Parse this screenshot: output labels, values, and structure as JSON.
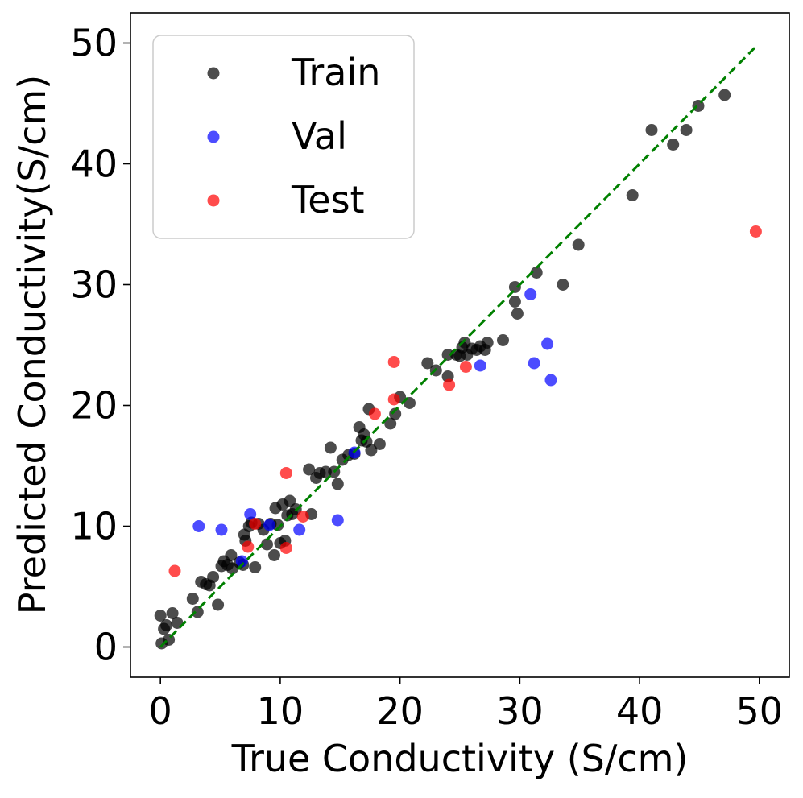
{
  "chart_data": {
    "type": "scatter",
    "title": "",
    "xlabel": "True Conductivity (S/cm)",
    "ylabel": "Predicted Conductivity(S/cm)",
    "xlim": [
      -2.5,
      52.5
    ],
    "ylim": [
      -2.5,
      52.5
    ],
    "xticks": [
      0,
      10,
      20,
      30,
      40,
      50
    ],
    "yticks": [
      0,
      10,
      20,
      30,
      40,
      50
    ],
    "xtick_labels": [
      "0",
      "10",
      "20",
      "30",
      "40",
      "50"
    ],
    "ytick_labels": [
      "0",
      "10",
      "20",
      "30",
      "40",
      "50"
    ],
    "grid": false,
    "legend_position": "top-left",
    "reference_line": {
      "x": [
        0,
        49.8
      ],
      "y": [
        0,
        49.8
      ],
      "color": "#008000",
      "style": "dashed"
    },
    "series": [
      {
        "name": "Train",
        "color": "#000000",
        "points": [
          [
            0.1,
            0.3
          ],
          [
            0.0,
            2.6
          ],
          [
            0.3,
            1.5
          ],
          [
            0.5,
            1.8
          ],
          [
            0.7,
            0.6
          ],
          [
            1.0,
            2.8
          ],
          [
            1.4,
            2.0
          ],
          [
            2.7,
            4.0
          ],
          [
            3.1,
            2.9
          ],
          [
            3.4,
            5.4
          ],
          [
            3.8,
            5.2
          ],
          [
            4.1,
            5.1
          ],
          [
            4.4,
            5.8
          ],
          [
            4.8,
            3.5
          ],
          [
            5.1,
            6.7
          ],
          [
            5.3,
            7.1
          ],
          [
            5.6,
            6.8
          ],
          [
            5.9,
            7.6
          ],
          [
            6.0,
            6.5
          ],
          [
            6.6,
            7.0
          ],
          [
            6.9,
            6.8
          ],
          [
            7.0,
            9.3
          ],
          [
            7.1,
            8.8
          ],
          [
            7.4,
            10.0
          ],
          [
            7.6,
            10.3
          ],
          [
            7.9,
            6.6
          ],
          [
            8.2,
            10.2
          ],
          [
            8.6,
            9.7
          ],
          [
            8.9,
            8.5
          ],
          [
            9.2,
            10.2
          ],
          [
            9.5,
            7.6
          ],
          [
            9.6,
            11.5
          ],
          [
            9.8,
            10.1
          ],
          [
            10.0,
            8.6
          ],
          [
            10.2,
            11.8
          ],
          [
            10.4,
            8.8
          ],
          [
            10.6,
            10.9
          ],
          [
            10.8,
            12.1
          ],
          [
            11.0,
            11.0
          ],
          [
            11.3,
            11.4
          ],
          [
            12.4,
            14.7
          ],
          [
            12.6,
            11.0
          ],
          [
            13.0,
            14.0
          ],
          [
            13.3,
            14.4
          ],
          [
            13.8,
            14.5
          ],
          [
            14.2,
            16.5
          ],
          [
            14.5,
            14.5
          ],
          [
            14.8,
            13.5
          ],
          [
            15.2,
            15.5
          ],
          [
            15.7,
            15.9
          ],
          [
            16.2,
            16.0
          ],
          [
            16.6,
            18.2
          ],
          [
            16.8,
            17.1
          ],
          [
            17.0,
            17.6
          ],
          [
            17.2,
            17.0
          ],
          [
            17.4,
            19.7
          ],
          [
            17.6,
            16.3
          ],
          [
            18.3,
            16.8
          ],
          [
            19.2,
            18.5
          ],
          [
            19.6,
            19.3
          ],
          [
            20.0,
            20.7
          ],
          [
            20.8,
            20.2
          ],
          [
            22.3,
            23.5
          ],
          [
            23.0,
            22.9
          ],
          [
            24.0,
            22.4
          ],
          [
            24.0,
            24.2
          ],
          [
            24.7,
            24.2
          ],
          [
            25.0,
            24.1
          ],
          [
            25.2,
            24.8
          ],
          [
            25.4,
            25.2
          ],
          [
            25.6,
            24.2
          ],
          [
            26.0,
            24.7
          ],
          [
            26.4,
            24.6
          ],
          [
            26.7,
            24.9
          ],
          [
            27.1,
            24.6
          ],
          [
            27.3,
            25.2
          ],
          [
            28.6,
            25.4
          ],
          [
            29.6,
            29.8
          ],
          [
            29.6,
            28.6
          ],
          [
            29.8,
            27.6
          ],
          [
            31.4,
            31.0
          ],
          [
            33.6,
            30.0
          ],
          [
            34.9,
            33.3
          ],
          [
            39.4,
            37.4
          ],
          [
            41.0,
            42.8
          ],
          [
            42.8,
            41.6
          ],
          [
            43.9,
            42.8
          ],
          [
            44.9,
            44.8
          ],
          [
            47.1,
            45.7
          ]
        ]
      },
      {
        "name": "Val",
        "color": "#0000ff",
        "points": [
          [
            3.2,
            10.0
          ],
          [
            5.1,
            9.7
          ],
          [
            6.8,
            7.1
          ],
          [
            7.5,
            11.0
          ],
          [
            9.1,
            10.1
          ],
          [
            11.6,
            9.7
          ],
          [
            14.8,
            10.5
          ],
          [
            16.2,
            16.1
          ],
          [
            26.7,
            23.3
          ],
          [
            30.9,
            29.2
          ],
          [
            31.2,
            23.5
          ],
          [
            32.3,
            25.1
          ],
          [
            32.6,
            22.1
          ]
        ]
      },
      {
        "name": "Test",
        "color": "#ff0000",
        "points": [
          [
            1.2,
            6.3
          ],
          [
            7.3,
            8.3
          ],
          [
            7.9,
            10.2
          ],
          [
            10.5,
            14.4
          ],
          [
            10.5,
            8.2
          ],
          [
            11.9,
            10.8
          ],
          [
            17.9,
            19.3
          ],
          [
            19.5,
            23.6
          ],
          [
            19.5,
            20.5
          ],
          [
            24.1,
            21.7
          ],
          [
            25.5,
            23.2
          ],
          [
            49.7,
            34.4
          ]
        ]
      }
    ]
  }
}
